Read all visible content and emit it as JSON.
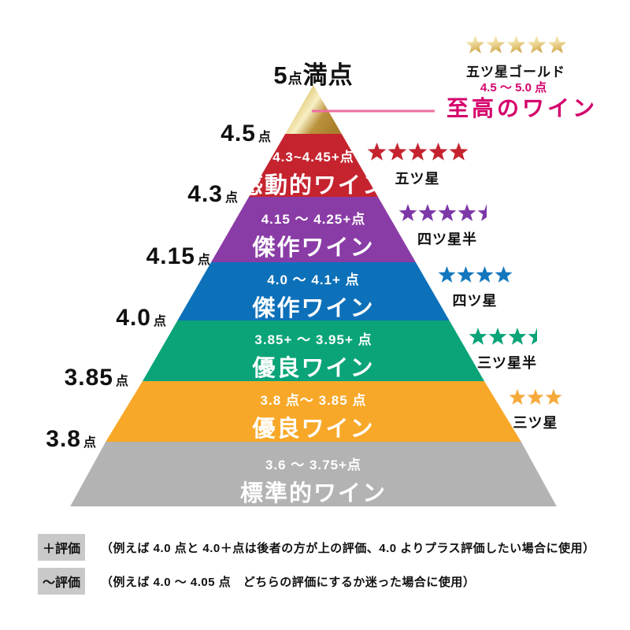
{
  "title": {
    "big": "5",
    "small": "点",
    "rest": "満点"
  },
  "apex": {
    "range": "4.5 ～ 5.0 点",
    "label": "至高のワイン"
  },
  "axis_labels": [
    {
      "value": "4.5",
      "unit": "点"
    },
    {
      "value": "4.3",
      "unit": "点"
    },
    {
      "value": "4.15",
      "unit": "点"
    },
    {
      "value": "4.0",
      "unit": "点"
    },
    {
      "value": "3.85",
      "unit": "点"
    },
    {
      "value": "3.8",
      "unit": "点"
    }
  ],
  "levels": [
    {
      "range": "4.3~4.45+点",
      "name": "感動的ワイン",
      "color": "#c5242f"
    },
    {
      "range": "4.15 ～ 4.25+点",
      "name": "傑作ワイン",
      "color": "#8a3ca6"
    },
    {
      "range": "4.0 ～ 4.1+ 点",
      "name": "傑作ワイン",
      "color": "#0d71ba"
    },
    {
      "range": "3.85+ ～ 3.95+ 点",
      "name": "優良ワイン",
      "color": "#0aa478"
    },
    {
      "range": "3.8 点～ 3.85 点",
      "name": "優良ワイン",
      "color": "#f8a828"
    },
    {
      "range": "3.6 ～ 3.75+点",
      "name": "標準的ワイン",
      "color": "#b3b3b3"
    }
  ],
  "ratings": [
    {
      "label": "五ツ星ゴールド",
      "stars": 5,
      "half": false,
      "color": "gold"
    },
    {
      "label": "五ツ星",
      "stars": 5,
      "half": false,
      "color": "#c5242f"
    },
    {
      "label": "四ツ星半",
      "stars": 4,
      "half": true,
      "color": "#7d38a8"
    },
    {
      "label": "四ツ星",
      "stars": 4,
      "half": false,
      "color": "#1377bd"
    },
    {
      "label": "三ツ星半",
      "stars": 3,
      "half": true,
      "color": "#0aa478"
    },
    {
      "label": "三ツ星",
      "stars": 3,
      "half": false,
      "color": "#f6a93b"
    }
  ],
  "notes": [
    {
      "tag": "＋評価",
      "text": "（例えば 4.0 点と 4.0＋点は後者の方が上の評価、4.0 よりプラス評価したい場合に使用）"
    },
    {
      "tag": "～評価",
      "text": "（例えば 4.0 ～ 4.05 点　どちらの評価にするか迷った場合に使用）"
    }
  ],
  "colors": {
    "accent_pink": "#d4006b",
    "connector_line": "#ee6fa3",
    "gold_edge": "#a87e2c",
    "gold_mid": "#e9d692",
    "gold_light": "#f7efc4",
    "gold_deep": "#bb923c",
    "gold_star_light": "#f7edc0",
    "gold_star_mid": "#eeda9b",
    "gold_star_dark": "#d2a94f",
    "note_tag_bg": "#c9c9c9",
    "band_text": "#ffffff"
  }
}
